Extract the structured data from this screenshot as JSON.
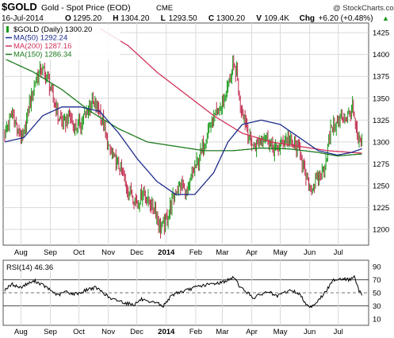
{
  "header": {
    "symbol": "$GOLD",
    "name": "Gold - Spot Price (EOD)",
    "exchange": "CME",
    "copyright": "@ StockCharts.com",
    "date": "16-Jul-2014",
    "quote": [
      {
        "key": "O",
        "value": "1295.20"
      },
      {
        "key": "H",
        "value": "1304.20"
      },
      {
        "key": "L",
        "value": "1293.50"
      },
      {
        "key": "C",
        "value": "1300.20"
      },
      {
        "key": "V",
        "value": "109.4K"
      },
      {
        "key": "Chg",
        "value": "+6.20 (+0.48%)"
      }
    ],
    "up_marker": "▲"
  },
  "colors": {
    "up": "#1a9a1a",
    "down": "#c0264a",
    "ma50": "#1c2c8c",
    "ma200": "#d0335a",
    "ma150": "#1e7a1e",
    "rsi": "#000000",
    "grid": "#d9d9d9",
    "frame": "#555555"
  },
  "chart_data": [
    {
      "type": "candlestick",
      "legend": [
        {
          "label": "$GOLD (Daily) 1300.20",
          "color": "#000000"
        },
        {
          "label": "MA(50) 1292.24",
          "color": "#1c2c8c"
        },
        {
          "label": "MA(200) 1287.16",
          "color": "#d0335a"
        },
        {
          "label": "MA(150) 1286.34",
          "color": "#1e7a1e"
        }
      ],
      "y_ticks": [
        1200,
        1225,
        1250,
        1275,
        1300,
        1325,
        1350,
        1375,
        1400,
        1425
      ],
      "ylim": [
        1182,
        1436
      ],
      "x_labels": [
        "Aug",
        "Sep",
        "Oct",
        "Nov",
        "Dec",
        "2014",
        "Feb",
        "Mar",
        "Apr",
        "May",
        "Jun",
        "Jul"
      ],
      "x_label_days": [
        17,
        48,
        78,
        109,
        139,
        170,
        201,
        229,
        260,
        290,
        321,
        351
      ],
      "xlim": [
        0,
        378
      ],
      "close_anchors": [
        [
          0,
          1310
        ],
        [
          8,
          1335
        ],
        [
          14,
          1310
        ],
        [
          20,
          1305
        ],
        [
          26,
          1345
        ],
        [
          32,
          1370
        ],
        [
          38,
          1385
        ],
        [
          44,
          1375
        ],
        [
          50,
          1355
        ],
        [
          56,
          1330
        ],
        [
          62,
          1320
        ],
        [
          68,
          1330
        ],
        [
          74,
          1315
        ],
        [
          80,
          1320
        ],
        [
          86,
          1335
        ],
        [
          92,
          1345
        ],
        [
          98,
          1340
        ],
        [
          104,
          1320
        ],
        [
          110,
          1290
        ],
        [
          116,
          1280
        ],
        [
          122,
          1270
        ],
        [
          128,
          1250
        ],
        [
          134,
          1240
        ],
        [
          140,
          1230
        ],
        [
          146,
          1245
        ],
        [
          152,
          1230
        ],
        [
          158,
          1225
        ],
        [
          164,
          1200
        ],
        [
          168,
          1205
        ],
        [
          174,
          1225
        ],
        [
          180,
          1245
        ],
        [
          186,
          1250
        ],
        [
          192,
          1240
        ],
        [
          198,
          1265
        ],
        [
          204,
          1280
        ],
        [
          210,
          1300
        ],
        [
          216,
          1320
        ],
        [
          222,
          1330
        ],
        [
          228,
          1340
        ],
        [
          234,
          1360
        ],
        [
          240,
          1385
        ],
        [
          244,
          1380
        ],
        [
          248,
          1340
        ],
        [
          252,
          1330
        ],
        [
          256,
          1310
        ],
        [
          262,
          1295
        ],
        [
          268,
          1300
        ],
        [
          274,
          1310
        ],
        [
          280,
          1295
        ],
        [
          286,
          1290
        ],
        [
          292,
          1300
        ],
        [
          298,
          1305
        ],
        [
          304,
          1295
        ],
        [
          310,
          1295
        ],
        [
          316,
          1260
        ],
        [
          322,
          1245
        ],
        [
          328,
          1255
        ],
        [
          334,
          1265
        ],
        [
          338,
          1280
        ],
        [
          344,
          1320
        ],
        [
          350,
          1320
        ],
        [
          356,
          1330
        ],
        [
          362,
          1330
        ],
        [
          366,
          1340
        ],
        [
          370,
          1310
        ],
        [
          374,
          1295
        ],
        [
          376,
          1300
        ]
      ],
      "ma50_anchors": [
        [
          0,
          1300
        ],
        [
          20,
          1305
        ],
        [
          40,
          1330
        ],
        [
          60,
          1340
        ],
        [
          80,
          1340
        ],
        [
          100,
          1335
        ],
        [
          120,
          1310
        ],
        [
          140,
          1280
        ],
        [
          160,
          1255
        ],
        [
          180,
          1240
        ],
        [
          200,
          1240
        ],
        [
          220,
          1265
        ],
        [
          235,
          1300
        ],
        [
          250,
          1320
        ],
        [
          270,
          1325
        ],
        [
          290,
          1320
        ],
        [
          310,
          1305
        ],
        [
          330,
          1290
        ],
        [
          350,
          1285
        ],
        [
          365,
          1288
        ],
        [
          376,
          1292.24
        ]
      ],
      "ma200_anchors": [
        [
          100,
          1430
        ],
        [
          130,
          1410
        ],
        [
          160,
          1380
        ],
        [
          190,
          1355
        ],
        [
          220,
          1330
        ],
        [
          250,
          1310
        ],
        [
          280,
          1300
        ],
        [
          310,
          1295
        ],
        [
          340,
          1290
        ],
        [
          376,
          1287.16
        ]
      ],
      "ma150_anchors": [
        [
          0,
          1395
        ],
        [
          30,
          1380
        ],
        [
          60,
          1360
        ],
        [
          90,
          1335
        ],
        [
          120,
          1315
        ],
        [
          150,
          1300
        ],
        [
          180,
          1295
        ],
        [
          210,
          1290
        ],
        [
          240,
          1290
        ],
        [
          270,
          1293
        ],
        [
          300,
          1292
        ],
        [
          330,
          1288
        ],
        [
          350,
          1284
        ],
        [
          376,
          1286.34
        ]
      ]
    },
    {
      "type": "line",
      "legend": [
        {
          "label": "RSI(14) 46.36",
          "color": "#000000"
        }
      ],
      "y_ticks": [
        10,
        30,
        50,
        70,
        90
      ],
      "ylim": [
        0,
        100
      ],
      "reference_lines": [
        30,
        50,
        70
      ],
      "x_labels": [
        "Aug",
        "Sep",
        "Oct",
        "Nov",
        "Dec",
        "2014",
        "Feb",
        "Mar",
        "Apr",
        "May",
        "Jun",
        "Jul"
      ],
      "rsi_anchors": [
        [
          0,
          55
        ],
        [
          8,
          63
        ],
        [
          16,
          58
        ],
        [
          24,
          64
        ],
        [
          32,
          68
        ],
        [
          40,
          62
        ],
        [
          48,
          54
        ],
        [
          56,
          46
        ],
        [
          64,
          52
        ],
        [
          72,
          48
        ],
        [
          80,
          50
        ],
        [
          88,
          56
        ],
        [
          96,
          58
        ],
        [
          104,
          50
        ],
        [
          112,
          40
        ],
        [
          120,
          38
        ],
        [
          128,
          34
        ],
        [
          136,
          32
        ],
        [
          144,
          40
        ],
        [
          152,
          34
        ],
        [
          160,
          36
        ],
        [
          166,
          28
        ],
        [
          172,
          40
        ],
        [
          180,
          50
        ],
        [
          188,
          52
        ],
        [
          196,
          56
        ],
        [
          204,
          60
        ],
        [
          212,
          62
        ],
        [
          220,
          64
        ],
        [
          228,
          66
        ],
        [
          236,
          70
        ],
        [
          242,
          74
        ],
        [
          248,
          58
        ],
        [
          254,
          52
        ],
        [
          262,
          42
        ],
        [
          270,
          48
        ],
        [
          278,
          52
        ],
        [
          286,
          44
        ],
        [
          294,
          50
        ],
        [
          302,
          54
        ],
        [
          310,
          48
        ],
        [
          318,
          32
        ],
        [
          322,
          28
        ],
        [
          330,
          38
        ],
        [
          338,
          52
        ],
        [
          346,
          70
        ],
        [
          354,
          72
        ],
        [
          362,
          70
        ],
        [
          368,
          74
        ],
        [
          372,
          56
        ],
        [
          376,
          46.36
        ]
      ]
    }
  ]
}
